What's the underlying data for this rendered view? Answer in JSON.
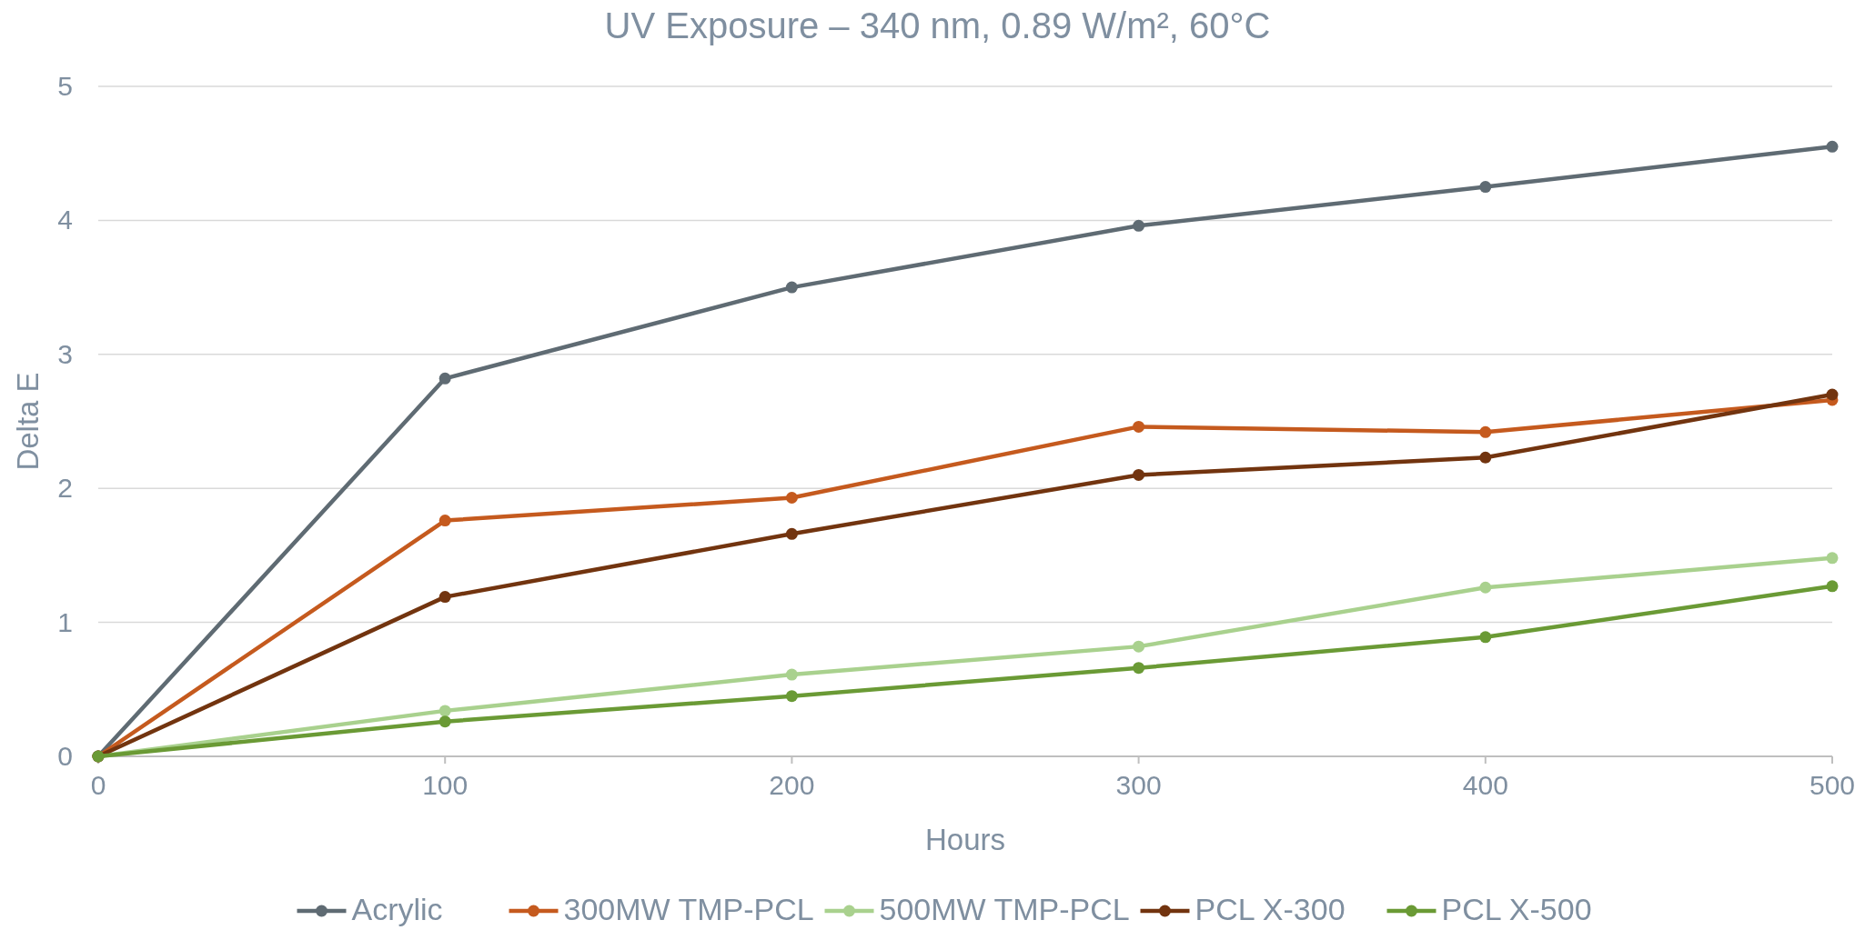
{
  "chart_data": {
    "type": "line",
    "title": "UV Exposure – 340 nm, 0.89 W/m², 60°C",
    "xlabel": "Hours",
    "ylabel": "Delta E",
    "x": [
      0,
      100,
      200,
      300,
      400,
      500
    ],
    "series": [
      {
        "name": "Acrylic",
        "color": "#5f6b73",
        "values": [
          0,
          2.82,
          3.5,
          3.96,
          4.25,
          4.55
        ]
      },
      {
        "name": "300MW TMP-PCL",
        "color": "#c55a1e",
        "values": [
          0,
          1.76,
          1.93,
          2.46,
          2.42,
          2.66
        ]
      },
      {
        "name": "500MW TMP-PCL",
        "color": "#a9d18e",
        "values": [
          0,
          0.34,
          0.61,
          0.82,
          1.26,
          1.48
        ]
      },
      {
        "name": "PCL X-300",
        "color": "#72340f",
        "values": [
          0,
          1.19,
          1.66,
          2.1,
          2.23,
          2.7
        ]
      },
      {
        "name": "PCL X-500",
        "color": "#6a9a35",
        "values": [
          0,
          0.26,
          0.45,
          0.66,
          0.89,
          1.27
        ]
      }
    ],
    "xlim": [
      0,
      500
    ],
    "xticks": [
      0,
      100,
      200,
      300,
      400,
      500
    ],
    "ylim": [
      0,
      5
    ],
    "yticks": [
      0,
      1,
      2,
      3,
      4,
      5
    ],
    "grid": "y",
    "legend": "bottom",
    "marker": "circle",
    "line_style": "solid"
  }
}
